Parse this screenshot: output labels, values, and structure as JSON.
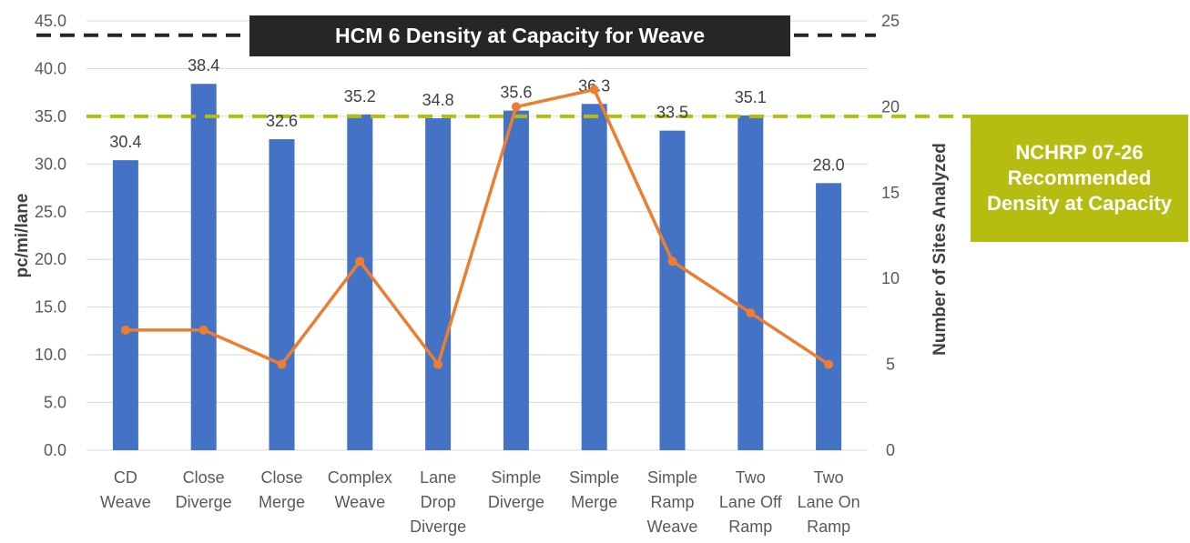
{
  "chart_data": {
    "type": "bar",
    "title": "HCM 6 Density at Capacity for Weave",
    "categories": [
      [
        "CD",
        "Weave"
      ],
      [
        "Close",
        "Diverge"
      ],
      [
        "Close",
        "Merge"
      ],
      [
        "Complex",
        "Weave"
      ],
      [
        "Lane",
        "Drop",
        "Diverge"
      ],
      [
        "Simple",
        "Diverge"
      ],
      [
        "Simple",
        "Merge"
      ],
      [
        "Simple",
        "Ramp",
        "Weave"
      ],
      [
        "Two",
        "Lane Off",
        "Ramp"
      ],
      [
        "Two",
        "Lane On",
        "Ramp"
      ]
    ],
    "series": [
      {
        "name": "Density at Capacity",
        "kind": "bar",
        "axis": "left",
        "color": "#4472c4",
        "values": [
          30.4,
          38.4,
          32.6,
          35.2,
          34.8,
          35.6,
          36.3,
          33.5,
          35.1,
          28.0
        ],
        "labels": [
          "30.4",
          "38.4",
          "32.6",
          "35.2",
          "34.8",
          "35.6",
          "36.3",
          "33.5",
          "35.1",
          "28.0"
        ]
      },
      {
        "name": "Number of Sites Analyzed",
        "kind": "line",
        "axis": "right",
        "color": "#ed7d31",
        "values": [
          7,
          7,
          5,
          11,
          5,
          20,
          21,
          11,
          8,
          5
        ]
      }
    ],
    "ylabel": "pc/mi/lane",
    "y2label": "Number of Sites Analyzed",
    "ylim": [
      0,
      45
    ],
    "y2lim": [
      0,
      25
    ],
    "yticks": [
      "0.0",
      "5.0",
      "10.0",
      "15.0",
      "20.0",
      "25.0",
      "30.0",
      "35.0",
      "40.0",
      "45.0"
    ],
    "y2ticks": [
      "0",
      "5",
      "10",
      "15",
      "20",
      "25"
    ],
    "reference_lines": [
      {
        "name": "hcm6",
        "value": 43.5,
        "color": "#262626",
        "label": "HCM 6 Density at Capacity for Weave"
      },
      {
        "name": "nchrp",
        "value": 35.0,
        "color": "#b4bd10",
        "label": "NCHRP 07-26 Recommended Density at Capacity"
      }
    ],
    "grid": true
  }
}
